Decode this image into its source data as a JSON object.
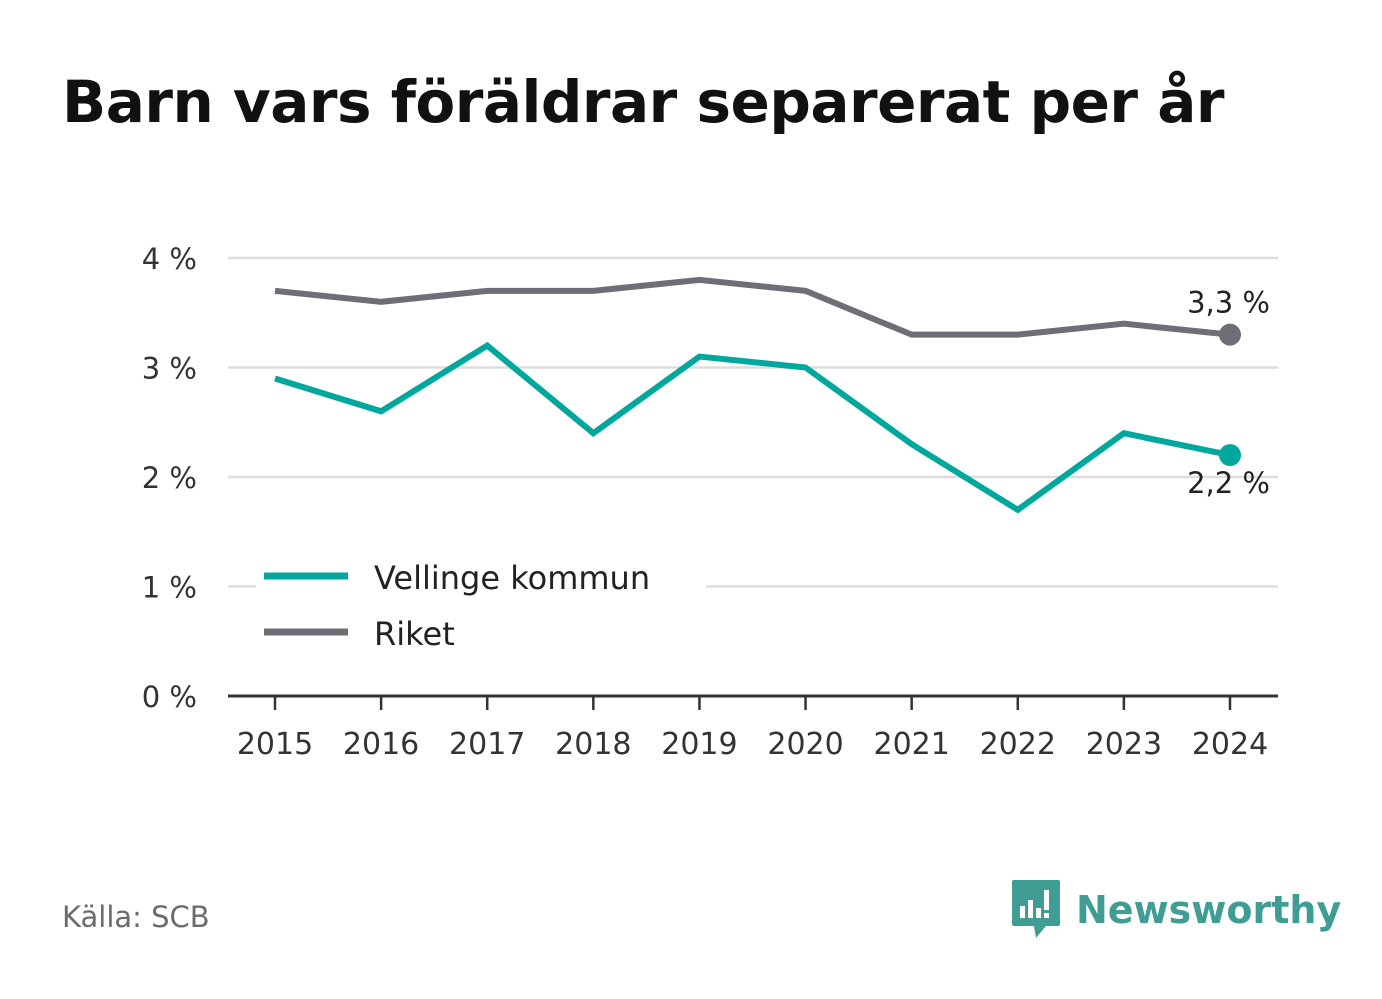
{
  "title": "Barn vars föräldrar separerat per år",
  "source": "Källa: SCB",
  "brand": {
    "name": "Newsworthy",
    "icon": "newsworthy-logo-icon",
    "color": "#3f9d93"
  },
  "chart_data": {
    "type": "line",
    "x": [
      "2015",
      "2016",
      "2017",
      "2018",
      "2019",
      "2020",
      "2021",
      "2022",
      "2023",
      "2024"
    ],
    "series": [
      {
        "name": "Vellinge kommun",
        "color": "#00a79d",
        "values": [
          2.9,
          2.6,
          3.2,
          2.4,
          3.1,
          3.0,
          2.3,
          1.7,
          2.4,
          2.2
        ],
        "end_label": "2,2 %"
      },
      {
        "name": "Riket",
        "color": "#6f6e76",
        "values": [
          3.7,
          3.6,
          3.7,
          3.7,
          3.8,
          3.7,
          3.3,
          3.3,
          3.4,
          3.3
        ],
        "end_label": "3,3 %"
      }
    ],
    "yticks": [
      "0 %",
      "1 %",
      "2 %",
      "3 %",
      "4 %"
    ],
    "ylim": [
      0,
      4
    ],
    "grid": true,
    "legend": "bottom-left"
  }
}
